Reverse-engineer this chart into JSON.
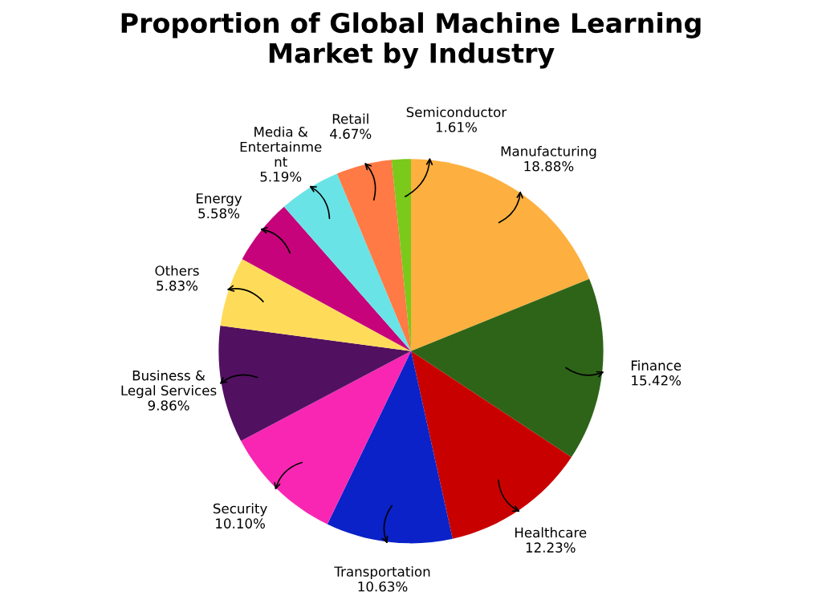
{
  "chart_data": {
    "type": "pie",
    "title": "Proportion of Global Machine Learning\nMarket by Industry",
    "categories": [
      "Manufacturing",
      "Finance",
      "Healthcare",
      "Transportation",
      "Security",
      "Business &\nLegal Services",
      "Others",
      "Energy",
      "Media &\nEntertainme\nnt",
      "Retail",
      "Semiconductor"
    ],
    "values": [
      18.88,
      15.42,
      12.23,
      10.63,
      10.1,
      9.86,
      5.83,
      5.58,
      5.19,
      4.67,
      1.61
    ],
    "value_labels": [
      "18.88%",
      "15.42%",
      "12.23%",
      "10.63%",
      "10.10%",
      "9.86%",
      "5.83%",
      "5.58%",
      "5.19%",
      "4.67%",
      "1.61%"
    ],
    "colors": [
      "#fdb03f",
      "#2e6418",
      "#c80000",
      "#0a22c8",
      "#f926b4",
      "#521060",
      "#fedc5a",
      "#c6037b",
      "#6ae3e6",
      "#ff7a45",
      "#7ac91b"
    ],
    "legend": false
  }
}
